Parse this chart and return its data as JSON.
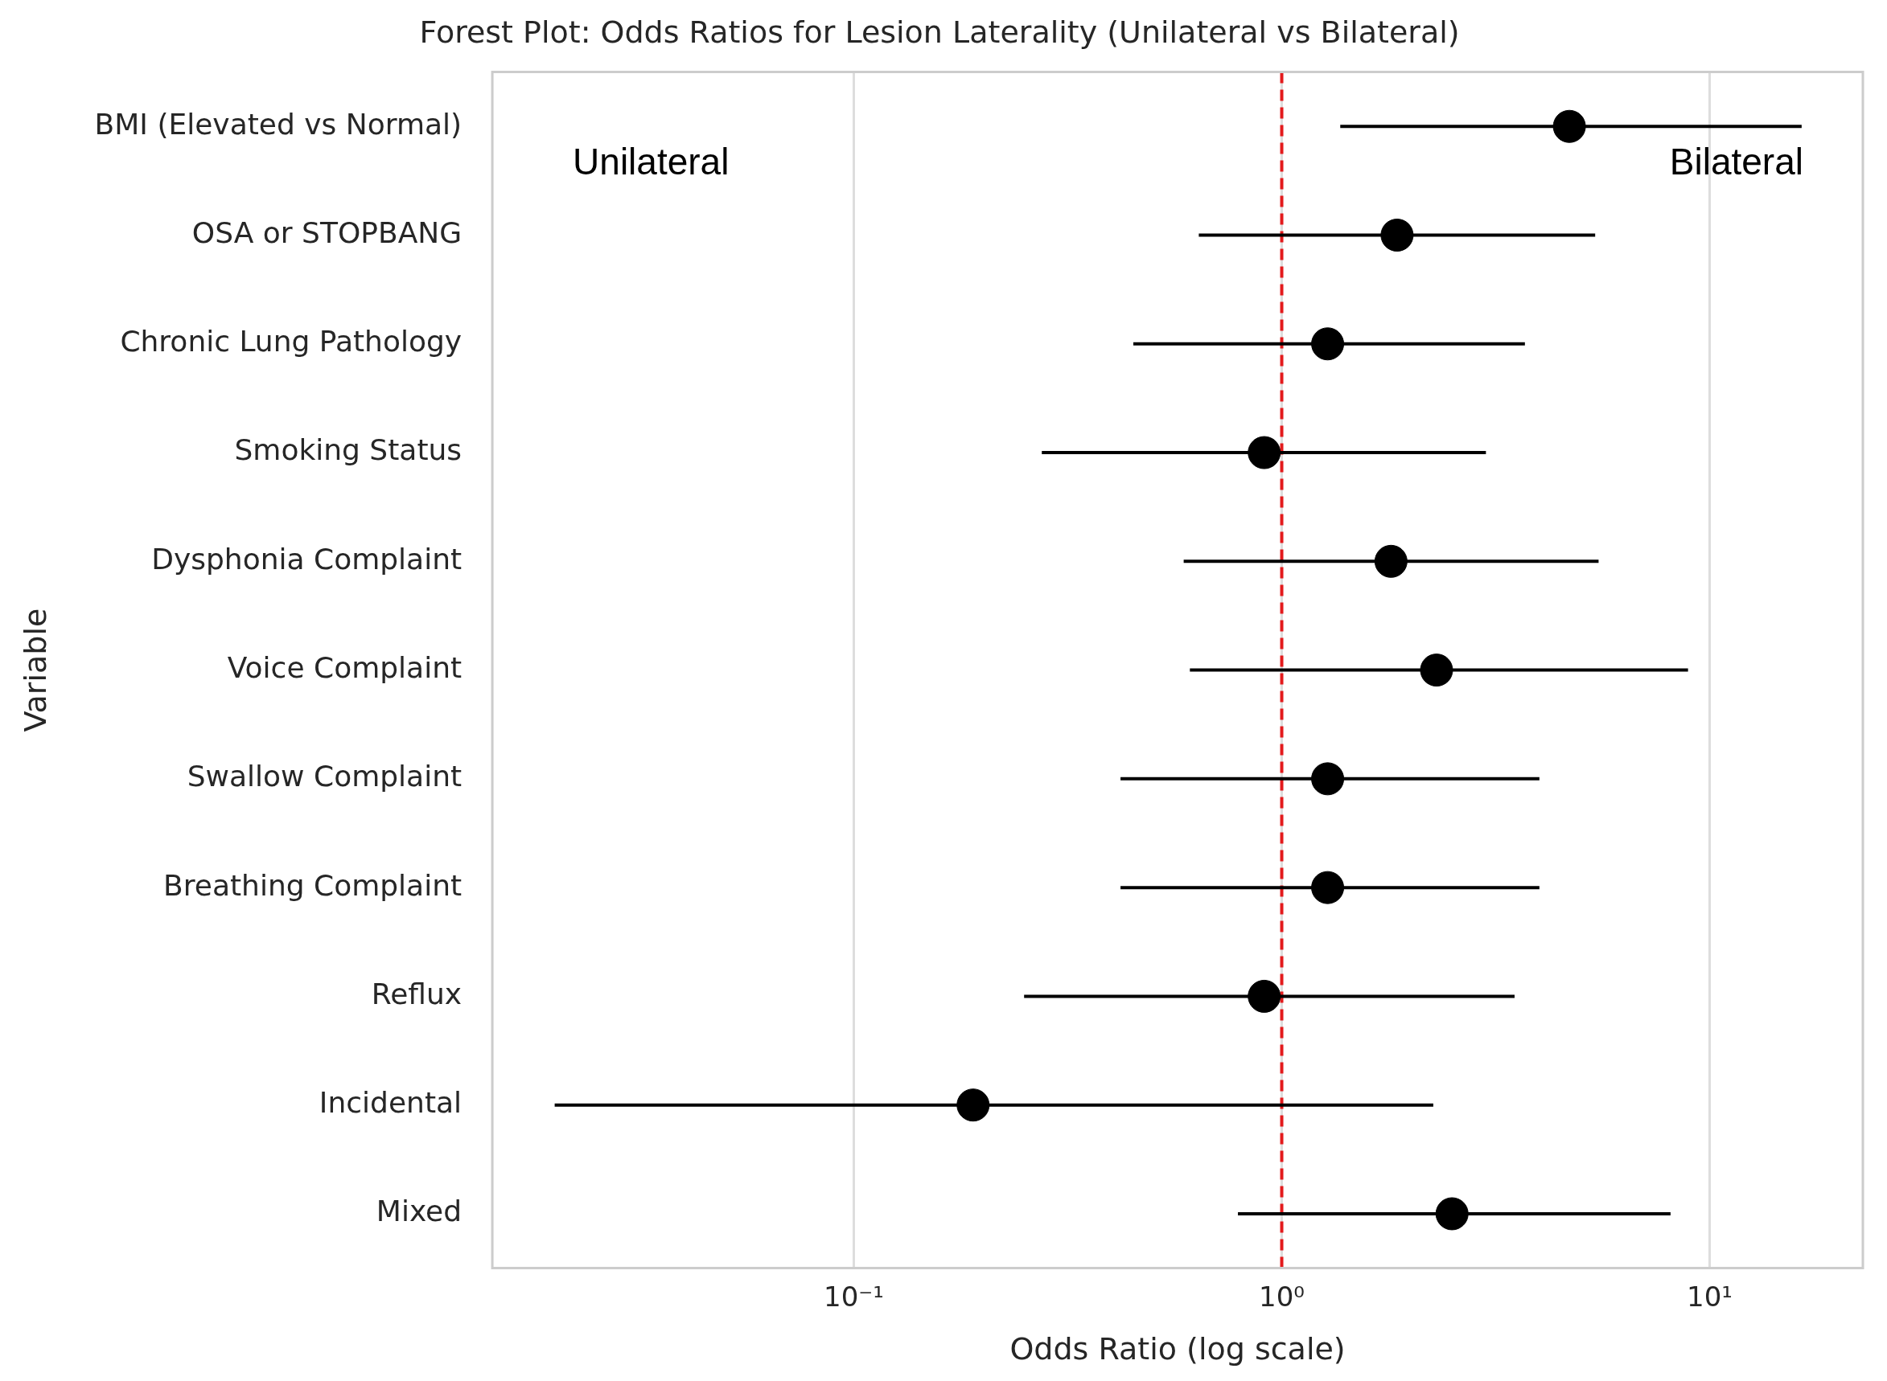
{
  "chart_data": {
    "type": "scatter",
    "title": "Forest Plot: Odds Ratios for Lesion Laterality (Unilateral vs Bilateral)",
    "xlabel": "Odds Ratio (log scale)",
    "ylabel": "Variable",
    "categories": [
      "BMI (Elevated vs Normal)",
      "OSA or STOPBANG",
      "Chronic Lung Pathology",
      "Smoking Status",
      "Dysphonia Complaint",
      "Voice Complaint",
      "Swallow Complaint",
      "Breathing Complaint",
      "Reflux",
      "Incidental",
      "Mixed"
    ],
    "orientation": "horizontal",
    "series": [
      {
        "color": "#000000",
        "values": [
          4.7,
          1.86,
          1.28,
          0.91,
          1.8,
          2.3,
          1.28,
          1.28,
          0.91,
          0.19,
          2.5
        ],
        "errors": [
          [
            1.37,
            16.4
          ],
          [
            0.64,
            5.4
          ],
          [
            0.45,
            3.7
          ],
          [
            0.275,
            3.0
          ],
          [
            0.59,
            5.5
          ],
          [
            0.61,
            8.9
          ],
          [
            0.42,
            4.0
          ],
          [
            0.42,
            4.0
          ],
          [
            0.25,
            3.5
          ],
          [
            0.02,
            2.26
          ],
          [
            0.79,
            8.1
          ]
        ]
      }
    ],
    "log": "x",
    "xlim": [
      0.0143,
      22.8
    ],
    "xticks": [
      {
        "value": 0.1,
        "label": "10⁻¹"
      },
      {
        "value": 1,
        "label": "10⁰"
      },
      {
        "value": 10,
        "label": "10¹"
      }
    ],
    "grid": "x",
    "legend": false,
    "marker": "circle",
    "ref_lines": [
      {
        "axis": "x",
        "value": 1,
        "color": "#e31a1c",
        "line_style": "dashed"
      }
    ],
    "annotations": [
      "Unilateral",
      "Bilateral"
    ]
  }
}
